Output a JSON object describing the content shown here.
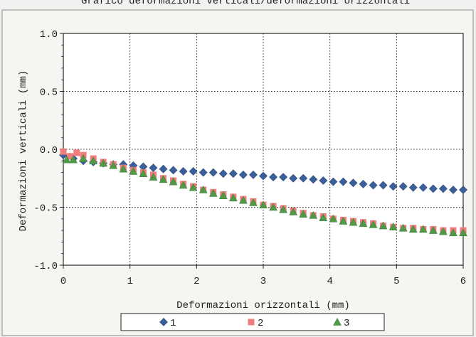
{
  "chart_data": {
    "type": "scatter",
    "title": "Grafico deformazioni verticali/deformazioni orizzontali",
    "xlabel": "Deformazioni orizzontali (mm)",
    "ylabel": "Deformazioni verticali (mm)",
    "xlim": [
      0,
      6
    ],
    "ylim": [
      -1.0,
      1.0
    ],
    "x_ticks": [
      "0",
      "1",
      "2",
      "3",
      "4",
      "5",
      "6"
    ],
    "y_ticks": [
      "1.0",
      "0.5",
      "0.0",
      "-0.5",
      "-1.0"
    ],
    "x_tick_values": [
      0,
      1,
      2,
      3,
      4,
      5,
      6
    ],
    "y_tick_values": [
      1.0,
      0.5,
      0.0,
      -0.5,
      -1.0
    ],
    "grid": true,
    "legend_position": "bottom",
    "series": [
      {
        "name": "1",
        "color": "#3a5f9a",
        "marker": "diamond",
        "points": [
          [
            0.0,
            -0.05
          ],
          [
            0.15,
            -0.08
          ],
          [
            0.3,
            -0.1
          ],
          [
            0.45,
            -0.11
          ],
          [
            0.6,
            -0.12
          ],
          [
            0.75,
            -0.13
          ],
          [
            0.9,
            -0.13
          ],
          [
            1.05,
            -0.14
          ],
          [
            1.2,
            -0.15
          ],
          [
            1.35,
            -0.16
          ],
          [
            1.5,
            -0.17
          ],
          [
            1.65,
            -0.18
          ],
          [
            1.8,
            -0.19
          ],
          [
            1.95,
            -0.19
          ],
          [
            2.1,
            -0.2
          ],
          [
            2.25,
            -0.2
          ],
          [
            2.4,
            -0.21
          ],
          [
            2.55,
            -0.21
          ],
          [
            2.7,
            -0.22
          ],
          [
            2.85,
            -0.22
          ],
          [
            3.0,
            -0.23
          ],
          [
            3.15,
            -0.24
          ],
          [
            3.3,
            -0.24
          ],
          [
            3.45,
            -0.25
          ],
          [
            3.6,
            -0.25
          ],
          [
            3.75,
            -0.26
          ],
          [
            3.9,
            -0.27
          ],
          [
            4.05,
            -0.28
          ],
          [
            4.2,
            -0.28
          ],
          [
            4.35,
            -0.29
          ],
          [
            4.5,
            -0.3
          ],
          [
            4.65,
            -0.31
          ],
          [
            4.8,
            -0.31
          ],
          [
            4.95,
            -0.32
          ],
          [
            5.1,
            -0.32
          ],
          [
            5.25,
            -0.33
          ],
          [
            5.4,
            -0.33
          ],
          [
            5.55,
            -0.34
          ],
          [
            5.7,
            -0.34
          ],
          [
            5.85,
            -0.35
          ],
          [
            6.0,
            -0.35
          ]
        ]
      },
      {
        "name": "2",
        "color": "#f07c7c",
        "marker": "square",
        "points": [
          [
            0.0,
            -0.02
          ],
          [
            0.1,
            -0.06
          ],
          [
            0.2,
            -0.03
          ],
          [
            0.3,
            -0.05
          ],
          [
            0.45,
            -0.08
          ],
          [
            0.6,
            -0.11
          ],
          [
            0.75,
            -0.13
          ],
          [
            0.9,
            -0.16
          ],
          [
            1.05,
            -0.18
          ],
          [
            1.2,
            -0.2
          ],
          [
            1.35,
            -0.22
          ],
          [
            1.5,
            -0.25
          ],
          [
            1.65,
            -0.27
          ],
          [
            1.8,
            -0.3
          ],
          [
            1.95,
            -0.32
          ],
          [
            2.1,
            -0.35
          ],
          [
            2.25,
            -0.37
          ],
          [
            2.4,
            -0.39
          ],
          [
            2.55,
            -0.41
          ],
          [
            2.7,
            -0.43
          ],
          [
            2.85,
            -0.45
          ],
          [
            3.0,
            -0.48
          ],
          [
            3.15,
            -0.49
          ],
          [
            3.3,
            -0.51
          ],
          [
            3.45,
            -0.53
          ],
          [
            3.6,
            -0.55
          ],
          [
            3.75,
            -0.57
          ],
          [
            3.9,
            -0.58
          ],
          [
            4.05,
            -0.6
          ],
          [
            4.2,
            -0.61
          ],
          [
            4.35,
            -0.62
          ],
          [
            4.5,
            -0.63
          ],
          [
            4.65,
            -0.64
          ],
          [
            4.8,
            -0.66
          ],
          [
            4.95,
            -0.67
          ],
          [
            5.1,
            -0.68
          ],
          [
            5.25,
            -0.68
          ],
          [
            5.4,
            -0.69
          ],
          [
            5.55,
            -0.69
          ],
          [
            5.7,
            -0.7
          ],
          [
            5.85,
            -0.7
          ],
          [
            6.0,
            -0.7
          ]
        ]
      },
      {
        "name": "3",
        "color": "#4e9a46",
        "marker": "triangle",
        "points": [
          [
            0.05,
            -0.09
          ],
          [
            0.15,
            -0.09
          ],
          [
            0.3,
            -0.08
          ],
          [
            0.45,
            -0.1
          ],
          [
            0.6,
            -0.12
          ],
          [
            0.75,
            -0.14
          ],
          [
            0.9,
            -0.17
          ],
          [
            1.05,
            -0.19
          ],
          [
            1.2,
            -0.21
          ],
          [
            1.35,
            -0.24
          ],
          [
            1.5,
            -0.26
          ],
          [
            1.65,
            -0.28
          ],
          [
            1.8,
            -0.31
          ],
          [
            1.95,
            -0.33
          ],
          [
            2.1,
            -0.35
          ],
          [
            2.25,
            -0.38
          ],
          [
            2.4,
            -0.4
          ],
          [
            2.55,
            -0.42
          ],
          [
            2.7,
            -0.44
          ],
          [
            2.85,
            -0.46
          ],
          [
            3.0,
            -0.48
          ],
          [
            3.15,
            -0.5
          ],
          [
            3.3,
            -0.52
          ],
          [
            3.45,
            -0.54
          ],
          [
            3.6,
            -0.56
          ],
          [
            3.75,
            -0.57
          ],
          [
            3.9,
            -0.59
          ],
          [
            4.05,
            -0.6
          ],
          [
            4.2,
            -0.62
          ],
          [
            4.35,
            -0.63
          ],
          [
            4.5,
            -0.64
          ],
          [
            4.65,
            -0.65
          ],
          [
            4.8,
            -0.66
          ],
          [
            4.95,
            -0.67
          ],
          [
            5.1,
            -0.68
          ],
          [
            5.25,
            -0.69
          ],
          [
            5.4,
            -0.69
          ],
          [
            5.55,
            -0.7
          ],
          [
            5.7,
            -0.71
          ],
          [
            5.85,
            -0.72
          ],
          [
            6.0,
            -0.72
          ]
        ]
      }
    ]
  }
}
